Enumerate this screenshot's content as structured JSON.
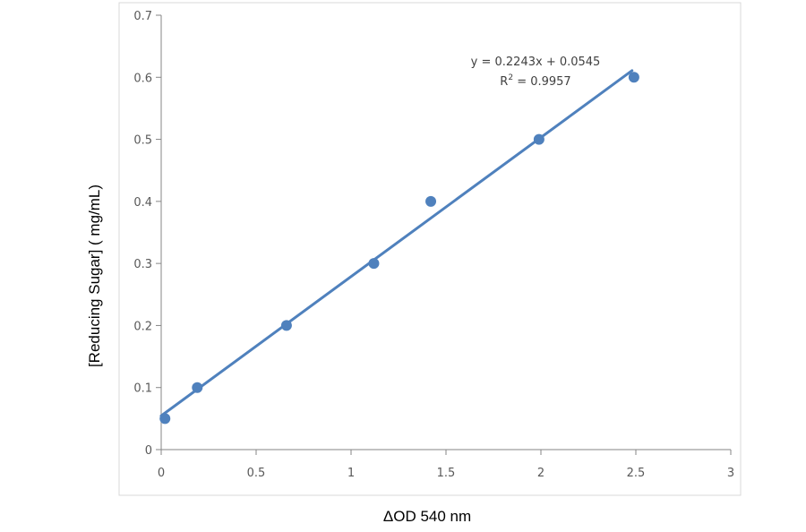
{
  "chart_data": {
    "type": "scatter",
    "xlabel": "ΔOD 540 nm",
    "ylabel": "[Reducing Sugar] ( mg/mL)",
    "xlim": [
      0,
      3
    ],
    "ylim": [
      0,
      0.7
    ],
    "x_ticks": [
      "0",
      "0.5",
      "1",
      "1.5",
      "2",
      "2.5",
      "3"
    ],
    "y_ticks": [
      "0",
      "0.1",
      "0.2",
      "0.3",
      "0.4",
      "0.5",
      "0.6",
      "0.7"
    ],
    "points": [
      {
        "x": 0.02,
        "y": 0.05
      },
      {
        "x": 0.19,
        "y": 0.1
      },
      {
        "x": 0.66,
        "y": 0.2
      },
      {
        "x": 1.12,
        "y": 0.3
      },
      {
        "x": 1.42,
        "y": 0.4
      },
      {
        "x": 1.99,
        "y": 0.5
      },
      {
        "x": 2.49,
        "y": 0.6
      }
    ],
    "trendline": {
      "slope": 0.2243,
      "intercept": 0.0545,
      "x_range": [
        0,
        2.48
      ],
      "equation": "y = 0.2243x + 0.0545",
      "r2_prefix": "R",
      "r2_sup": "2",
      "r2_value": " = 0.9957"
    },
    "grid": false,
    "colors": {
      "marker": "#4f81bd",
      "trendline": "#4f81bd",
      "axis": "#868686",
      "plot_border": "#d9d9d9"
    }
  }
}
